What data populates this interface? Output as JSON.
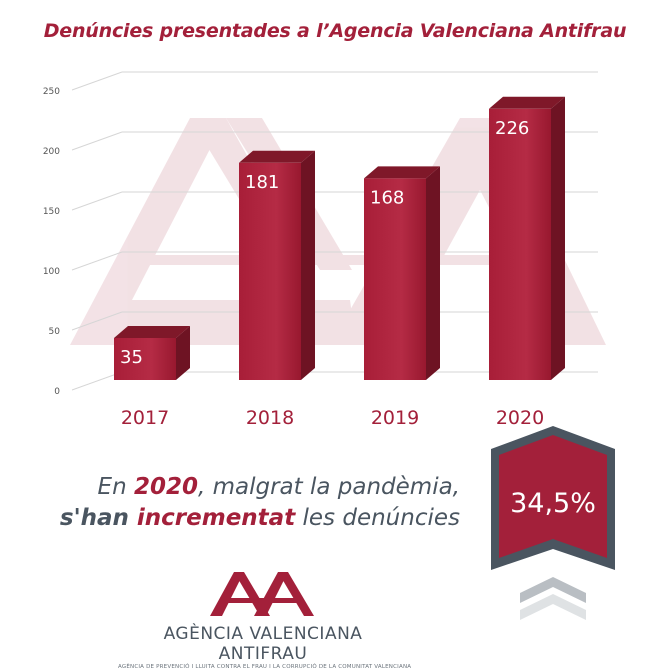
{
  "chart_data": {
    "type": "bar",
    "title": "Denúncies presentades a l’Agencia Valenciana Antifrau",
    "categories": [
      "2017",
      "2018",
      "2019",
      "2020"
    ],
    "values": [
      35,
      181,
      168,
      226
    ],
    "data_labels": [
      "35",
      "181",
      "168",
      "226"
    ],
    "ylim": [
      0,
      250
    ],
    "yticks": [
      0,
      50,
      100,
      150,
      200,
      250
    ],
    "grid": true,
    "bar_color": "#a3203a"
  },
  "headline": {
    "part1": "En ",
    "year": "2020",
    "part2": ", malgrat la pandèmia,",
    "part3": "s'han ",
    "incremented": "incrementat",
    "part4": " les denúncies"
  },
  "badge": {
    "percent": "34,5%",
    "color": "#a3203a"
  },
  "logo": {
    "name": "AGÈNCIA VALENCIANA ANTIFRAU",
    "subtitle": "AGÈNCIA DE PREVENCIÓ I LLUITA CONTRA EL FRAU I LA CORRUPCIÓ DE LA COMUNITAT VALENCIANA"
  }
}
